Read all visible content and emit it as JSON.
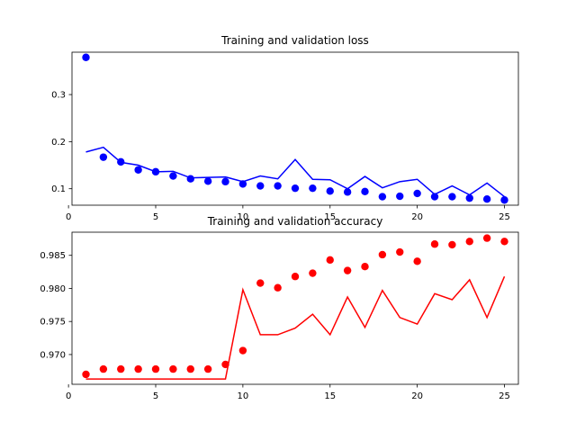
{
  "chart_data": [
    {
      "type": "line+scatter",
      "title": "Training and validation loss",
      "xlabel": "",
      "ylabel": "",
      "xlim": [
        0.2,
        25.8
      ],
      "ylim": [
        0.065,
        0.39
      ],
      "xticks": [
        0,
        5,
        10,
        15,
        20,
        25
      ],
      "yticks": [
        0.1,
        0.2,
        0.3
      ],
      "ytick_labels": [
        "0.1",
        "0.2",
        "0.3"
      ],
      "grid": false,
      "color": "#0000ff",
      "x": [
        1,
        2,
        3,
        4,
        5,
        6,
        7,
        8,
        9,
        10,
        11,
        12,
        13,
        14,
        15,
        16,
        17,
        18,
        19,
        20,
        21,
        22,
        23,
        24,
        25
      ],
      "points": [
        0.379,
        0.167,
        0.157,
        0.14,
        0.136,
        0.127,
        0.121,
        0.116,
        0.115,
        0.11,
        0.106,
        0.106,
        0.101,
        0.101,
        0.095,
        0.093,
        0.094,
        0.083,
        0.084,
        0.09,
        0.083,
        0.083,
        0.08,
        0.078,
        0.076
      ],
      "line": [
        0.178,
        0.188,
        0.156,
        0.15,
        0.136,
        0.137,
        0.123,
        0.124,
        0.125,
        0.115,
        0.127,
        0.121,
        0.162,
        0.12,
        0.119,
        0.1,
        0.126,
        0.102,
        0.115,
        0.12,
        0.088,
        0.106,
        0.087,
        0.112,
        0.083
      ]
    },
    {
      "type": "line+scatter",
      "title": "Training and validation accuracy",
      "xlabel": "",
      "ylabel": "",
      "xlim": [
        0.2,
        25.8
      ],
      "ylim": [
        0.9655,
        0.9885
      ],
      "xticks": [
        0,
        5,
        10,
        15,
        20,
        25
      ],
      "yticks": [
        0.97,
        0.975,
        0.98,
        0.985
      ],
      "ytick_labels": [
        "0.970",
        "0.975",
        "0.980",
        "0.985"
      ],
      "grid": false,
      "color": "#ff0000",
      "x": [
        1,
        2,
        3,
        4,
        5,
        6,
        7,
        8,
        9,
        10,
        11,
        12,
        13,
        14,
        15,
        16,
        17,
        18,
        19,
        20,
        21,
        22,
        23,
        24,
        25
      ],
      "points": [
        0.967,
        0.9678,
        0.9678,
        0.9678,
        0.9678,
        0.9678,
        0.9678,
        0.9678,
        0.9685,
        0.9706,
        0.9808,
        0.9801,
        0.9818,
        0.9823,
        0.9843,
        0.9827,
        0.9833,
        0.9851,
        0.9855,
        0.9841,
        0.9867,
        0.9866,
        0.9871,
        0.9876,
        0.9871
      ],
      "line": [
        0.9663,
        0.9663,
        0.9663,
        0.9663,
        0.9663,
        0.9663,
        0.9663,
        0.9663,
        0.9663,
        0.9798,
        0.973,
        0.973,
        0.974,
        0.9761,
        0.973,
        0.9787,
        0.9741,
        0.9797,
        0.9756,
        0.9746,
        0.9792,
        0.9783,
        0.9813,
        0.9756,
        0.9818
      ]
    }
  ]
}
